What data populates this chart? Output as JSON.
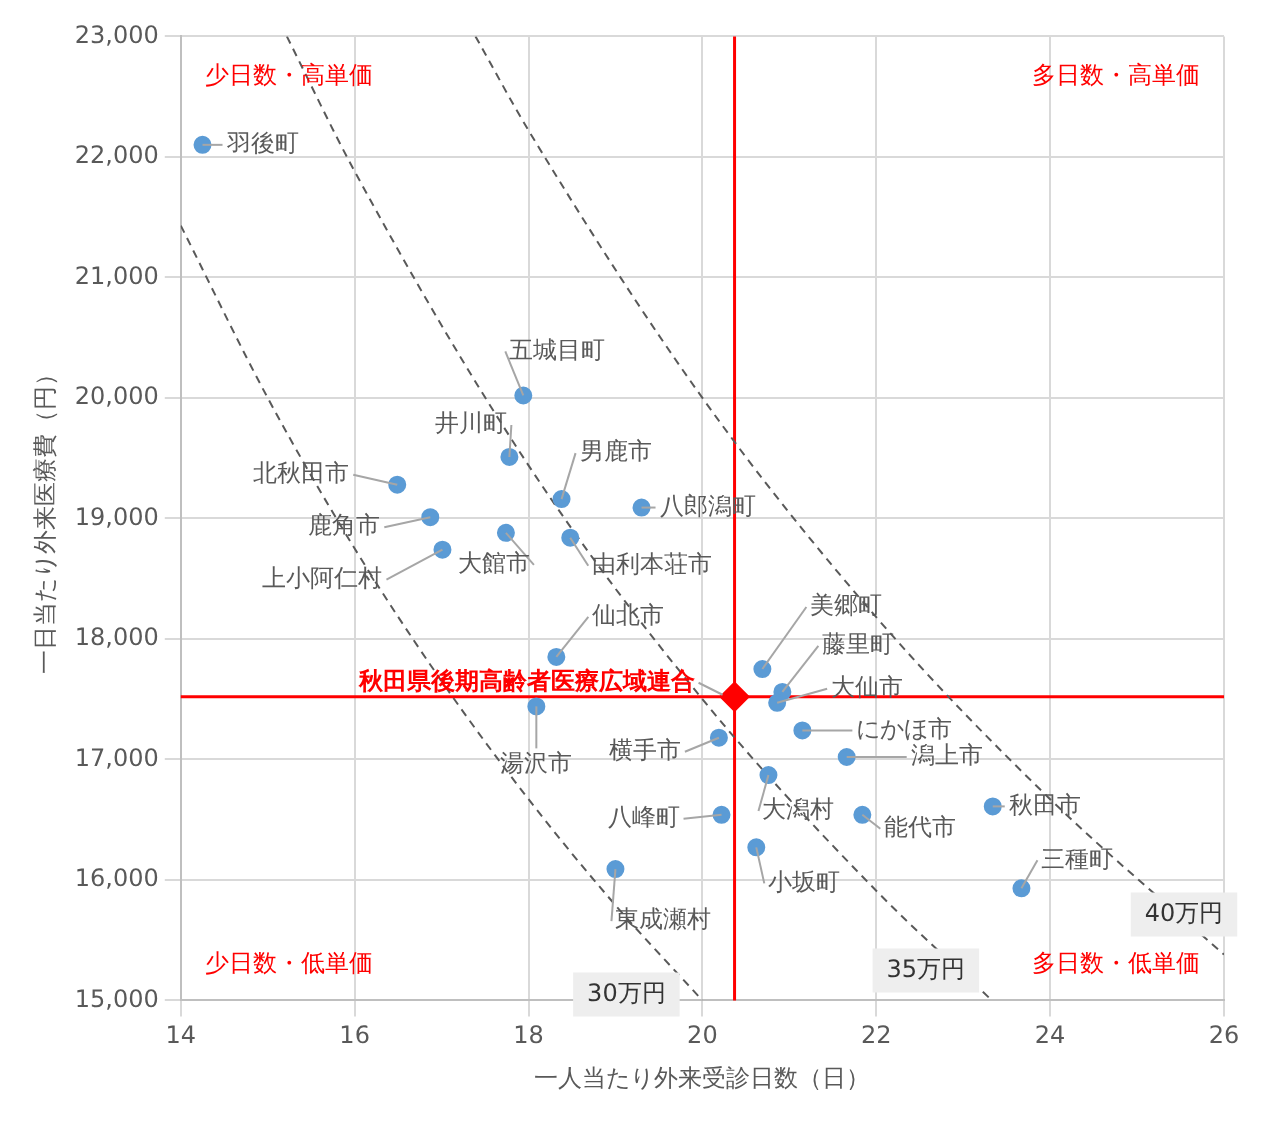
{
  "chart_data": {
    "type": "scatter",
    "xlabel": "一人当たり外来受診日数（日）",
    "ylabel": "一日当たり外来医療費（円）",
    "xlim": [
      14,
      26
    ],
    "xticks": [
      14,
      16,
      18,
      20,
      22,
      24,
      26
    ],
    "ylim": [
      15000,
      23000
    ],
    "yticks": [
      {
        "value": 15000,
        "label": "15,000"
      },
      {
        "value": 16000,
        "label": "16,000"
      },
      {
        "value": 17000,
        "label": "17,000"
      },
      {
        "value": 18000,
        "label": "18,000"
      },
      {
        "value": 19000,
        "label": "19,000"
      },
      {
        "value": 20000,
        "label": "20,000"
      },
      {
        "value": 21000,
        "label": "21,000"
      },
      {
        "value": 22000,
        "label": "22,000"
      },
      {
        "value": 23000,
        "label": "23,000"
      }
    ],
    "grid": true,
    "legend": false,
    "marker": "circle",
    "series": [
      {
        "type": "scatter",
        "color": "#5b9bd5",
        "x": [
          14.25,
          17.94,
          17.78,
          18.38,
          19.3,
          16.49,
          16.87,
          17.74,
          17.01,
          18.48,
          18.32,
          18.09,
          20.19,
          20.69,
          20.92,
          20.86,
          21.15,
          21.66,
          20.76,
          20.22,
          21.84,
          20.62,
          23.34,
          23.67,
          19.0
        ],
        "values": [
          22100,
          20020,
          19510,
          19160,
          19090,
          19280,
          19010,
          18880,
          18740,
          18840,
          17850,
          17440,
          17180,
          17750,
          17560,
          17470,
          17240,
          17020,
          16870,
          16540,
          16540,
          16270,
          16610,
          15930,
          16090
        ]
      },
      {
        "type": "scatter",
        "name": "秋田県後期高齢者医療広域連合",
        "color": "#ff0000",
        "marker": "diamond",
        "x": [
          20.37
        ],
        "values": [
          17520
        ]
      },
      {
        "type": "line",
        "color": "#595959",
        "line_style": "dashed",
        "marker": "none",
        "x": [
          14,
          15,
          16,
          17,
          18,
          19,
          20
        ],
        "values": [
          21430,
          20000,
          18750,
          17650,
          16670,
          15790,
          15000
        ]
      },
      {
        "type": "line",
        "color": "#595959",
        "line_style": "dashed",
        "marker": "none",
        "x": [
          15.22,
          16,
          18,
          20,
          22,
          23.33
        ],
        "values": [
          23000,
          21880,
          19440,
          17500,
          15910,
          15000
        ]
      },
      {
        "type": "line",
        "color": "#595959",
        "line_style": "dashed",
        "marker": "none",
        "x": [
          17.39,
          18,
          20,
          22,
          24,
          26
        ],
        "values": [
          23000,
          22220,
          20000,
          18180,
          16670,
          15380
        ]
      }
    ],
    "ref_lines": [
      {
        "axis": "x",
        "value": 20.37,
        "color": "#ff0000"
      },
      {
        "axis": "y",
        "value": 17520,
        "color": "#ff0000"
      }
    ],
    "annotations": [
      "少日数・高単価",
      "多日数・高単価",
      "少日数・低単価",
      "多日数・低単価",
      {
        "text": "30万円",
        "x": 20,
        "y": 15000
      },
      {
        "text": "35万円",
        "x": 23.33,
        "y": 15000
      },
      {
        "text": "40万円",
        "x": 26,
        "y": 15380
      },
      {
        "text": "羽後町",
        "x": 14.25,
        "y": 22100
      },
      {
        "text": "五城目町",
        "x": 17.94,
        "y": 20020
      },
      {
        "text": "井川町",
        "x": 17.78,
        "y": 19510
      },
      {
        "text": "男鹿市",
        "x": 18.38,
        "y": 19160
      },
      {
        "text": "八郎潟町",
        "x": 19.3,
        "y": 19090
      },
      {
        "text": "北秋田市",
        "x": 16.49,
        "y": 19280
      },
      {
        "text": "鹿角市",
        "x": 16.87,
        "y": 19010
      },
      {
        "text": "大館市",
        "x": 17.74,
        "y": 18880
      },
      {
        "text": "上小阿仁村",
        "x": 17.01,
        "y": 18740
      },
      {
        "text": "由利本荘市",
        "x": 18.48,
        "y": 18840
      },
      {
        "text": "仙北市",
        "x": 18.32,
        "y": 17850
      },
      {
        "text": "湯沢市",
        "x": 18.09,
        "y": 17440
      },
      {
        "text": "横手市",
        "x": 20.19,
        "y": 17180
      },
      {
        "text": "美郷町",
        "x": 20.69,
        "y": 17750
      },
      {
        "text": "藤里町",
        "x": 20.92,
        "y": 17560
      },
      {
        "text": "大仙市",
        "x": 20.86,
        "y": 17470
      },
      {
        "text": "にかほ市",
        "x": 21.15,
        "y": 17240
      },
      {
        "text": "潟上市",
        "x": 21.66,
        "y": 17020
      },
      {
        "text": "大潟村",
        "x": 20.76,
        "y": 16870
      },
      {
        "text": "八峰町",
        "x": 20.22,
        "y": 16540
      },
      {
        "text": "能代市",
        "x": 21.84,
        "y": 16540
      },
      {
        "text": "小坂町",
        "x": 20.62,
        "y": 16270
      },
      {
        "text": "秋田市",
        "x": 23.34,
        "y": 16610
      },
      {
        "text": "三種町",
        "x": 23.67,
        "y": 15930
      },
      {
        "text": "東成瀬村",
        "x": 19.0,
        "y": 16090
      }
    ]
  }
}
